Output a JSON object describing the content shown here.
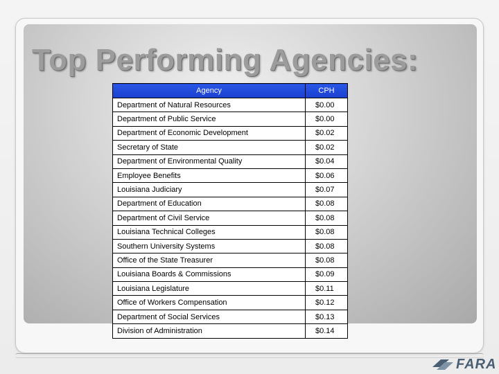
{
  "title": "Top Performing Agencies:",
  "table": {
    "headers": [
      "Agency",
      "CPH"
    ],
    "rows": [
      {
        "agency": "Department of Natural Resources",
        "cph": "$0.00"
      },
      {
        "agency": "Department of Public Service",
        "cph": "$0.00"
      },
      {
        "agency": "Department of Economic Development",
        "cph": "$0.02"
      },
      {
        "agency": "Secretary of State",
        "cph": "$0.02"
      },
      {
        "agency": "Department of Environmental Quality",
        "cph": "$0.04"
      },
      {
        "agency": "Employee Benefits",
        "cph": "$0.06"
      },
      {
        "agency": "Louisiana Judiciary",
        "cph": "$0.07"
      },
      {
        "agency": "Department of Education",
        "cph": "$0.08"
      },
      {
        "agency": "Department of Civil Service",
        "cph": "$0.08"
      },
      {
        "agency": "Louisiana Technical Colleges",
        "cph": "$0.08"
      },
      {
        "agency": "Southern University Systems",
        "cph": "$0.08"
      },
      {
        "agency": "Office of the State Treasurer",
        "cph": "$0.08"
      },
      {
        "agency": "Louisiana Boards & Commissions",
        "cph": "$0.09"
      },
      {
        "agency": "Louisiana Legislature",
        "cph": "$0.11"
      },
      {
        "agency": "Office of Workers Compensation",
        "cph": "$0.12"
      },
      {
        "agency": "Department of Social Services",
        "cph": "$0.13"
      },
      {
        "agency": "Division of Administration",
        "cph": "$0.14"
      }
    ]
  },
  "logo": {
    "text": "FARA"
  },
  "colors": {
    "header_bg": "#1f47db",
    "title": "#9c9c9c",
    "logo": "#4a5f72"
  }
}
